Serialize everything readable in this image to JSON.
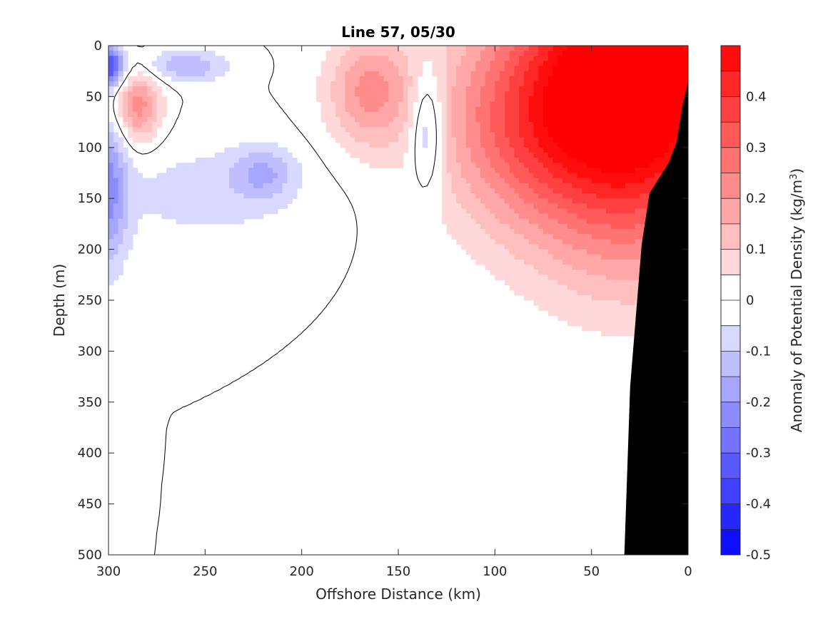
{
  "chart_data": {
    "type": "heatmap",
    "subtype": "filled-contour section",
    "title": "Line 57, 05/30",
    "xlabel": "Offshore Distance (km)",
    "ylabel": "Depth (m)",
    "colorbar_label": "Anomaly of Potential Density (kg/m",
    "colorbar_label_superscript": "3",
    "colorbar_label_close": ")",
    "xlim": [
      300,
      0
    ],
    "x_reversed": true,
    "ylim": [
      0,
      500
    ],
    "y_reversed": true,
    "x_ticks": [
      300,
      250,
      200,
      150,
      100,
      50,
      0
    ],
    "x_tick_labels": [
      "300",
      "250",
      "200",
      "150",
      "100",
      "50",
      "0"
    ],
    "y_ticks": [
      0,
      50,
      100,
      150,
      200,
      250,
      300,
      350,
      400,
      450,
      500
    ],
    "y_tick_labels": [
      "0",
      "50",
      "100",
      "150",
      "200",
      "250",
      "300",
      "350",
      "400",
      "450",
      "500"
    ],
    "color_range": [
      -0.5,
      0.5
    ],
    "level_step": 0.05,
    "colorbar_ticks": [
      0.4,
      0.3,
      0.2,
      0.1,
      0,
      -0.1,
      -0.2,
      -0.3,
      -0.4,
      -0.5
    ],
    "colorbar_tick_labels": [
      "0.4",
      "0.3",
      "0.2",
      "0.1",
      "0",
      "-0.1",
      "-0.2",
      "-0.3",
      "-0.4",
      "-0.5"
    ],
    "colormap": "blue-white-red",
    "zero_contour_color": "#000000",
    "bathymetry_color": "#000000",
    "features": [
      {
        "kind": "positive",
        "name": "nearshore surface anomaly",
        "x_center": 25,
        "depth_center": 20,
        "x_radius": 55,
        "depth_radius": 130,
        "peak": 0.47
      },
      {
        "kind": "positive",
        "name": "nearshore mid anomaly",
        "x_center": 55,
        "depth_center": 60,
        "x_radius": 70,
        "depth_radius": 110,
        "peak": 0.25
      },
      {
        "kind": "positive",
        "name": "shelf deep anomaly",
        "x_center": 30,
        "depth_center": 180,
        "x_radius": 55,
        "depth_radius": 100,
        "peak": 0.12
      },
      {
        "kind": "positive",
        "name": "offshore broad anomaly",
        "x_center": 90,
        "depth_center": 90,
        "x_radius": 40,
        "depth_radius": 90,
        "peak": 0.09
      },
      {
        "kind": "positive",
        "name": "eddy near 165 km",
        "x_center": 165,
        "depth_center": 45,
        "x_radius": 22,
        "depth_radius": 55,
        "peak": 0.2
      },
      {
        "kind": "positive",
        "name": "eddy near 285 km",
        "x_center": 285,
        "depth_center": 60,
        "x_radius": 12,
        "depth_radius": 35,
        "peak": 0.23
      },
      {
        "kind": "negative",
        "name": "eddy near 135 km",
        "x_center": 135,
        "depth_center": 80,
        "x_radius": 9,
        "depth_radius": 60,
        "peak": -0.17
      },
      {
        "kind": "negative",
        "name": "surface anomaly near 300 km",
        "x_center": 300,
        "depth_center": 20,
        "x_radius": 8,
        "depth_radius": 20,
        "peak": -0.35
      },
      {
        "kind": "negative",
        "name": "edge anomaly near 300 km",
        "x_center": 300,
        "depth_center": 140,
        "x_radius": 10,
        "depth_radius": 80,
        "peak": -0.2
      },
      {
        "kind": "negative",
        "name": "anomaly near 260 km",
        "x_center": 260,
        "depth_center": 20,
        "x_radius": 22,
        "depth_radius": 15,
        "peak": -0.15
      },
      {
        "kind": "negative",
        "name": "anomaly near 220 km",
        "x_center": 220,
        "depth_center": 125,
        "x_radius": 16,
        "depth_radius": 25,
        "peak": -0.13
      },
      {
        "kind": "negative",
        "name": "broad offshore anomaly",
        "x_center": 250,
        "depth_center": 145,
        "x_radius": 55,
        "depth_radius": 55,
        "peak": -0.07
      }
    ],
    "bathymetry": [
      {
        "x": 0,
        "depth": 35
      },
      {
        "x": 3,
        "depth": 60
      },
      {
        "x": 6,
        "depth": 95
      },
      {
        "x": 10,
        "depth": 115
      },
      {
        "x": 20,
        "depth": 145
      },
      {
        "x": 24,
        "depth": 195
      },
      {
        "x": 30,
        "depth": 335
      },
      {
        "x": 33,
        "depth": 500
      }
    ]
  }
}
